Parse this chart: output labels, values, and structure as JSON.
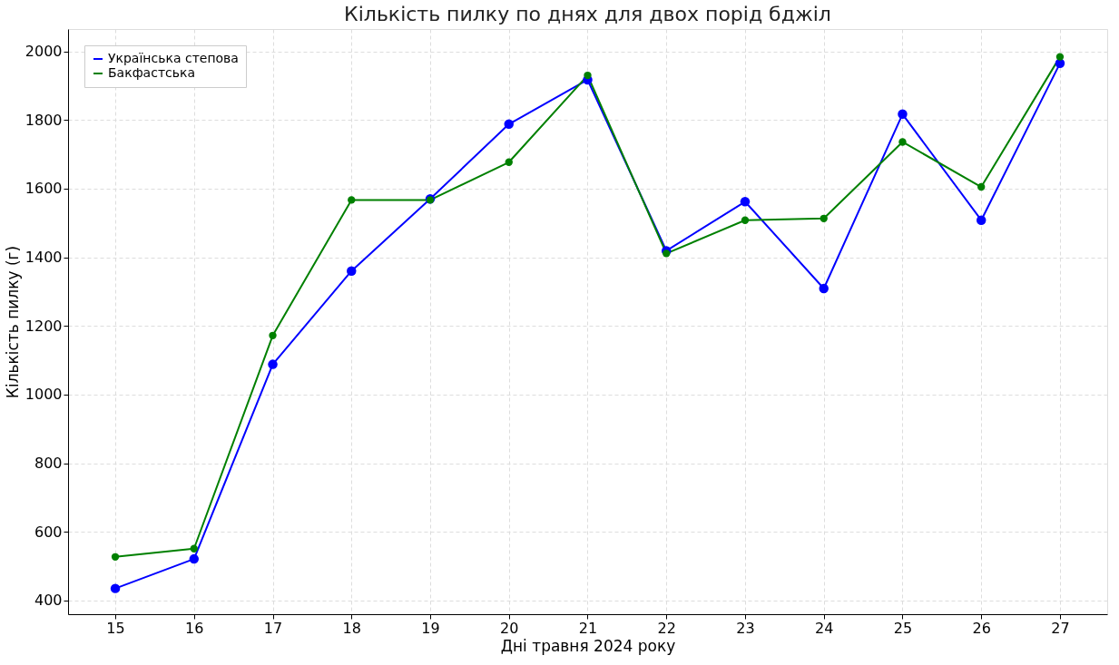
{
  "chart_data": {
    "type": "line",
    "title": "Кількість пилку по днях для двох порід бджіл",
    "xlabel": "Дні травня 2024 року",
    "ylabel": "Кількість пилку (г)",
    "x": [
      15,
      16,
      17,
      18,
      19,
      20,
      21,
      22,
      23,
      24,
      25,
      26,
      27
    ],
    "series": [
      {
        "name": "Українська степова",
        "color": "#0000ff",
        "values": [
          435,
          521,
          1088,
          1360,
          1570,
          1788,
          1917,
          1419,
          1562,
          1309,
          1817,
          1508,
          1965
        ]
      },
      {
        "name": "Бакфастська",
        "color": "#008000",
        "values": [
          527,
          551,
          1172,
          1567,
          1567,
          1677,
          1930,
          1411,
          1508,
          1513,
          1736,
          1605,
          1984
        ]
      }
    ],
    "xlim": [
      14.4,
      27.6
    ],
    "xticks": [
      15,
      16,
      17,
      18,
      19,
      20,
      21,
      22,
      23,
      24,
      25,
      26,
      27
    ],
    "ylim": [
      360,
      2065
    ],
    "yticks": [
      400,
      600,
      800,
      1000,
      1200,
      1400,
      1600,
      1800,
      2000
    ],
    "grid": true,
    "legend": "top left",
    "marker": "circle",
    "line_style": "solid"
  }
}
